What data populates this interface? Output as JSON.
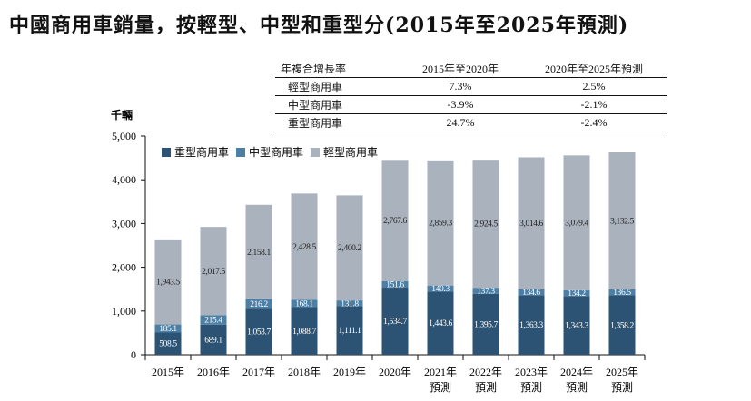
{
  "title": "中國商用車銷量，按輕型、中型和重型分(2015年至2025年預測)",
  "cagr_table": {
    "headers": [
      "年複合增長率",
      "2015年至2020年",
      "2020年至2025年預測"
    ],
    "rows": [
      [
        "輕型商用車",
        "7.3%",
        "2.5%"
      ],
      [
        "中型商用車",
        "-3.9%",
        "-2.1%"
      ],
      [
        "重型商用車",
        "24.7%",
        "-2.4%"
      ]
    ]
  },
  "chart_data": {
    "type": "bar",
    "stacked": true,
    "ylabel": "千輛",
    "ylim": [
      0,
      5000
    ],
    "yticks": [
      "0",
      "1,000",
      "2,000",
      "3,000",
      "4,000",
      "5,000"
    ],
    "grid": false,
    "legend_position": "top-left",
    "categories": [
      "2015年",
      "2016年",
      "2017年",
      "2018年",
      "2019年",
      "2020年",
      "2021年\n預測",
      "2022年\n預測",
      "2023年\n預測",
      "2024年\n預測",
      "2025年\n預測"
    ],
    "series": [
      {
        "name": "重型商用車",
        "color": "#2c5373",
        "values": [
          508.5,
          689.1,
          1053.7,
          1088.7,
          1111.1,
          1534.7,
          1443.6,
          1395.7,
          1363.3,
          1343.3,
          1358.2
        ],
        "labels": [
          "508.5",
          "689.1",
          "1,053.7",
          "1,088.7",
          "1,111.1",
          "1,534.7",
          "1,443.6",
          "1,395.7",
          "1,363.3",
          "1,343.3",
          "1,358.2"
        ]
      },
      {
        "name": "中型商用車",
        "color": "#4d7fa5",
        "values": [
          185.1,
          215.4,
          216.2,
          168.1,
          131.8,
          151.6,
          140.3,
          137.3,
          134.6,
          134.2,
          136.5
        ],
        "labels": [
          "185.1",
          "215.4",
          "216.2",
          "168.1",
          "131.8",
          "151.6",
          "140.3",
          "137.3",
          "134.6",
          "134.2",
          "136.5"
        ]
      },
      {
        "name": "輕型商用車",
        "color": "#a9b2bd",
        "values": [
          1943.5,
          2017.5,
          2158.1,
          2428.5,
          2400.2,
          2767.6,
          2859.3,
          2924.5,
          3014.6,
          3079.4,
          3132.5
        ],
        "labels": [
          "1,943.5",
          "2,017.5",
          "2,158.1",
          "2,428.5",
          "2,400.2",
          "2,767.6",
          "2,859.3",
          "2,924.5",
          "3,014.6",
          "3,079.4",
          "3,132.5"
        ]
      }
    ]
  }
}
